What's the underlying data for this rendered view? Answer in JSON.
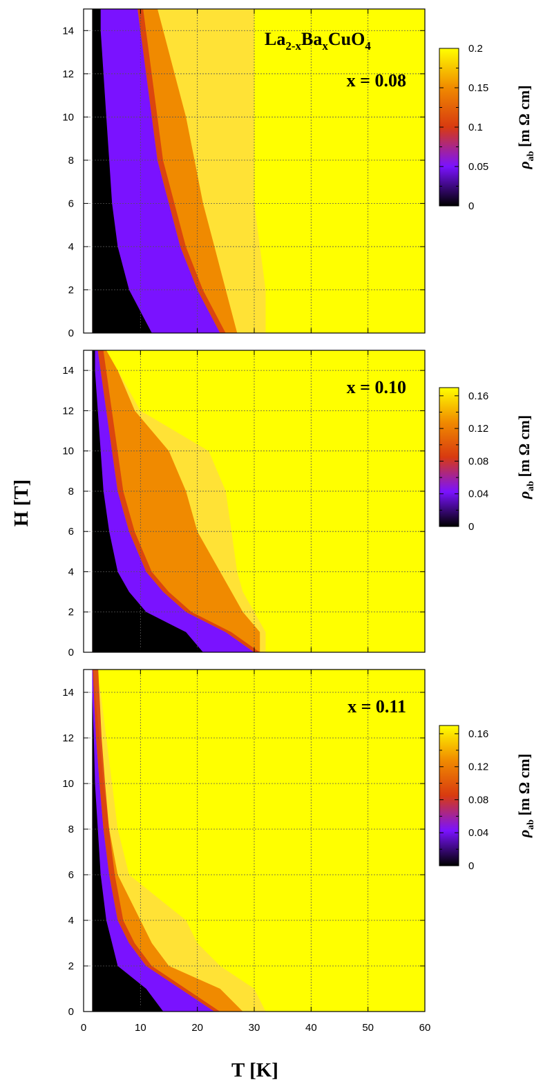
{
  "figure": {
    "x_axis_label": "T [K]",
    "y_axis_label": "H [T]",
    "compound": {
      "main": "La",
      "sub1": "2-x",
      "mid": "Ba",
      "sub2": "x",
      "tail": "CuO",
      "sub3": "4"
    },
    "colorbar_label": {
      "symbol": "ρ",
      "sub": "ab",
      "unit": " [m Ω cm]"
    }
  },
  "colors": {
    "black": "#000000",
    "purple": "#7a12ff",
    "red": "#d83a10",
    "orange": "#f08a00",
    "yellow": "#ffff00"
  },
  "chart_data": [
    {
      "type": "heatmap",
      "annotation": "x = 0.08",
      "xlim": [
        0,
        60
      ],
      "ylim": [
        0,
        15
      ],
      "xticks": [
        "0",
        "10",
        "20",
        "30",
        "40",
        "50",
        "60"
      ],
      "yticks": [
        "0",
        "2",
        "4",
        "6",
        "8",
        "10",
        "12",
        "14"
      ],
      "grid": true,
      "data_T_min": 1.5,
      "colorbar": {
        "range": [
          0,
          0.2
        ],
        "ticks": [
          "0",
          "0.05",
          "0.1",
          "0.15",
          "0.2"
        ]
      },
      "boundaries": [
        {
          "name": "black",
          "H": [
            0,
            2,
            4,
            6,
            8,
            10,
            12,
            14,
            15
          ],
          "T": [
            12,
            8,
            6,
            5,
            4.5,
            4,
            3.5,
            3,
            3
          ]
        },
        {
          "name": "purple",
          "H": [
            0,
            2,
            4,
            6,
            8,
            10,
            12,
            14,
            15
          ],
          "T": [
            24,
            20,
            17,
            15,
            13,
            12,
            11,
            10,
            9.5
          ]
        },
        {
          "name": "orange",
          "H": [
            0,
            2,
            4,
            6,
            8,
            10,
            12,
            14,
            15
          ],
          "T": [
            27,
            25,
            23,
            21,
            19.5,
            18,
            16,
            14,
            13
          ]
        },
        {
          "name": "yellow",
          "H": [
            0,
            2,
            4,
            6,
            8,
            10,
            12,
            14,
            15
          ],
          "T": [
            32,
            32,
            31,
            30,
            30,
            30,
            30,
            30,
            30
          ]
        }
      ]
    },
    {
      "type": "heatmap",
      "annotation": "x = 0.10",
      "xlim": [
        0,
        60
      ],
      "ylim": [
        0,
        15
      ],
      "xticks": [
        "0",
        "10",
        "20",
        "30",
        "40",
        "50",
        "60"
      ],
      "yticks": [
        "0",
        "2",
        "4",
        "6",
        "8",
        "10",
        "12",
        "14"
      ],
      "grid": true,
      "data_T_min": 1.5,
      "colorbar": {
        "range": [
          0,
          0.17
        ],
        "ticks": [
          "0",
          "0.04",
          "0.08",
          "0.12",
          "0.16"
        ]
      },
      "boundaries": [
        {
          "name": "black",
          "H": [
            0,
            1,
            2,
            3,
            4,
            6,
            8,
            10,
            12,
            14,
            15
          ],
          "T": [
            21,
            18,
            11,
            8,
            6,
            4.5,
            3.5,
            3,
            2.5,
            2,
            2
          ]
        },
        {
          "name": "purple",
          "H": [
            0,
            1,
            2,
            3,
            4,
            6,
            8,
            10,
            12,
            14,
            15
          ],
          "T": [
            30,
            25,
            18,
            14,
            11,
            8,
            6,
            5,
            4,
            3,
            2.5
          ]
        },
        {
          "name": "orange",
          "H": [
            0,
            1,
            2,
            3,
            4,
            6,
            8,
            10,
            12,
            14,
            15
          ],
          "T": [
            31,
            31,
            28,
            26,
            24,
            20,
            18,
            15,
            9,
            6,
            4
          ]
        },
        {
          "name": "yellow",
          "H": [
            0,
            1,
            2,
            3,
            4,
            6,
            8,
            10,
            12,
            14,
            15
          ],
          "T": [
            32,
            32,
            30,
            28,
            27,
            26,
            25,
            22,
            10,
            6,
            4
          ]
        }
      ]
    },
    {
      "type": "heatmap",
      "annotation": "x = 0.11",
      "xlim": [
        0,
        60
      ],
      "ylim": [
        0,
        15
      ],
      "xticks": [
        "0",
        "10",
        "20",
        "30",
        "40",
        "50",
        "60"
      ],
      "yticks": [
        "0",
        "2",
        "4",
        "6",
        "8",
        "10",
        "12",
        "14"
      ],
      "grid": true,
      "data_T_min": 1.5,
      "colorbar": {
        "range": [
          0,
          0.17
        ],
        "ticks": [
          "0",
          "0.04",
          "0.08",
          "0.12",
          "0.16"
        ]
      },
      "boundaries": [
        {
          "name": "black",
          "H": [
            0,
            1,
            2,
            3,
            4,
            6,
            8,
            10,
            12,
            14,
            15
          ],
          "T": [
            14,
            11,
            6,
            5,
            4,
            3,
            2.5,
            2,
            1.8,
            1.5,
            1.5
          ]
        },
        {
          "name": "purple",
          "H": [
            0,
            1,
            2,
            3,
            4,
            6,
            8,
            10,
            12,
            14,
            15
          ],
          "T": [
            23,
            17,
            11,
            8,
            6,
            4.5,
            3.5,
            2.8,
            2.2,
            1.8,
            1.6
          ]
        },
        {
          "name": "orange",
          "H": [
            0,
            1,
            2,
            3,
            4,
            6,
            8,
            10,
            12,
            14,
            15
          ],
          "T": [
            28,
            24,
            15,
            12,
            10,
            6,
            4.5,
            3.5,
            2.8,
            2,
            1.8
          ]
        },
        {
          "name": "yellow",
          "H": [
            0,
            1,
            2,
            3,
            4,
            6,
            8,
            10,
            12,
            14,
            15
          ],
          "T": [
            32,
            30,
            24,
            20,
            18,
            8,
            6,
            5,
            4,
            3,
            2
          ]
        }
      ]
    }
  ]
}
